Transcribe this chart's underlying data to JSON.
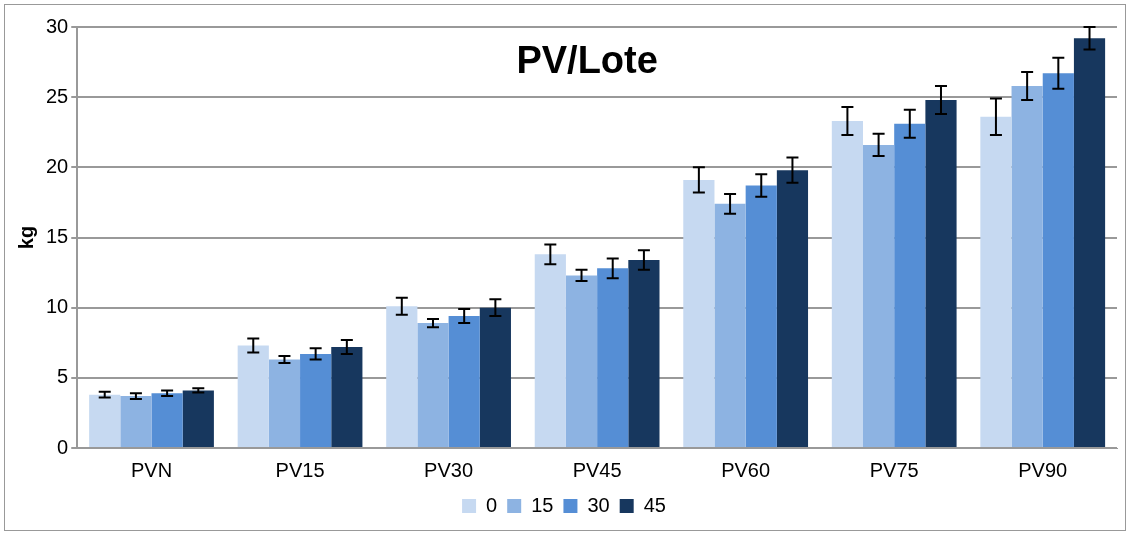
{
  "chart_data": {
    "type": "bar",
    "title": "PV/Lote",
    "ylabel": "kg",
    "categories": [
      "PVN",
      "PV15",
      "PV30",
      "PV45",
      "PV60",
      "PV75",
      "PV90"
    ],
    "series": [
      {
        "name": "0",
        "color": "#c6d9f1",
        "values": [
          3.8,
          7.3,
          10.1,
          13.8,
          19.1,
          23.3,
          23.6
        ],
        "errors": [
          0.2,
          0.5,
          0.6,
          0.7,
          0.9,
          1.0,
          1.3
        ]
      },
      {
        "name": "15",
        "color": "#8db3e2",
        "values": [
          3.7,
          6.3,
          8.9,
          12.3,
          17.4,
          21.6,
          25.8
        ],
        "errors": [
          0.2,
          0.25,
          0.3,
          0.4,
          0.7,
          0.8,
          1.0
        ]
      },
      {
        "name": "30",
        "color": "#558ed5",
        "values": [
          3.9,
          6.7,
          9.4,
          12.8,
          18.7,
          23.1,
          26.7
        ],
        "errors": [
          0.2,
          0.4,
          0.5,
          0.7,
          0.8,
          1.0,
          1.1
        ]
      },
      {
        "name": "45",
        "color": "#17375e",
        "values": [
          4.1,
          7.2,
          10.0,
          13.4,
          19.8,
          24.8,
          29.2
        ],
        "errors": [
          0.15,
          0.5,
          0.6,
          0.7,
          0.9,
          1.0,
          0.8
        ]
      }
    ],
    "ylim": [
      0,
      30
    ],
    "yticks": [
      0,
      5,
      10,
      15,
      20,
      25,
      30
    ],
    "grid": "y",
    "legend": "bottom"
  }
}
